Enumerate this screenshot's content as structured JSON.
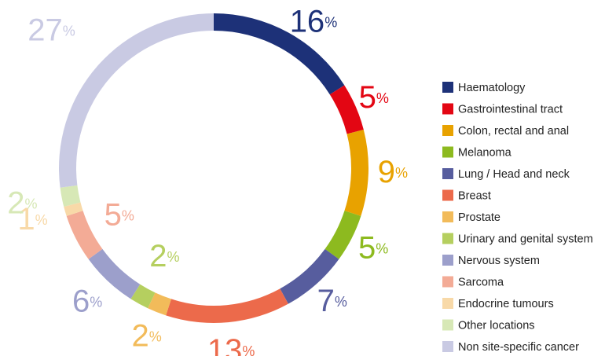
{
  "chart_data": {
    "type": "pie",
    "categories": [
      "Haematology",
      "Gastrointestinal tract",
      "Colon, rectal and anal",
      "Melanoma",
      "Lung / Head and neck",
      "Breast",
      "Prostate",
      "Urinary and genital system",
      "Nervous system",
      "Sarcoma",
      "Endocrine tumours",
      "Other locations",
      "Non site-specific cancer"
    ],
    "values": [
      16,
      5,
      9,
      5,
      7,
      13,
      2,
      2,
      6,
      5,
      1,
      2,
      27
    ],
    "value_labels": [
      "16%",
      "5%",
      "9%",
      "5%",
      "7%",
      "13%",
      "2%",
      "2%",
      "6%",
      "5%",
      "1%",
      "2%",
      "27%"
    ],
    "colors": [
      "#1d3178",
      "#e30613",
      "#e8a200",
      "#8dba1f",
      "#575d9e",
      "#ec6a4b",
      "#f2bb5a",
      "#b5cf5f",
      "#9c9fcb",
      "#f3ab96",
      "#f8d9a8",
      "#d7e8b6",
      "#c9cae3"
    ],
    "donut": true,
    "legend": "right"
  }
}
